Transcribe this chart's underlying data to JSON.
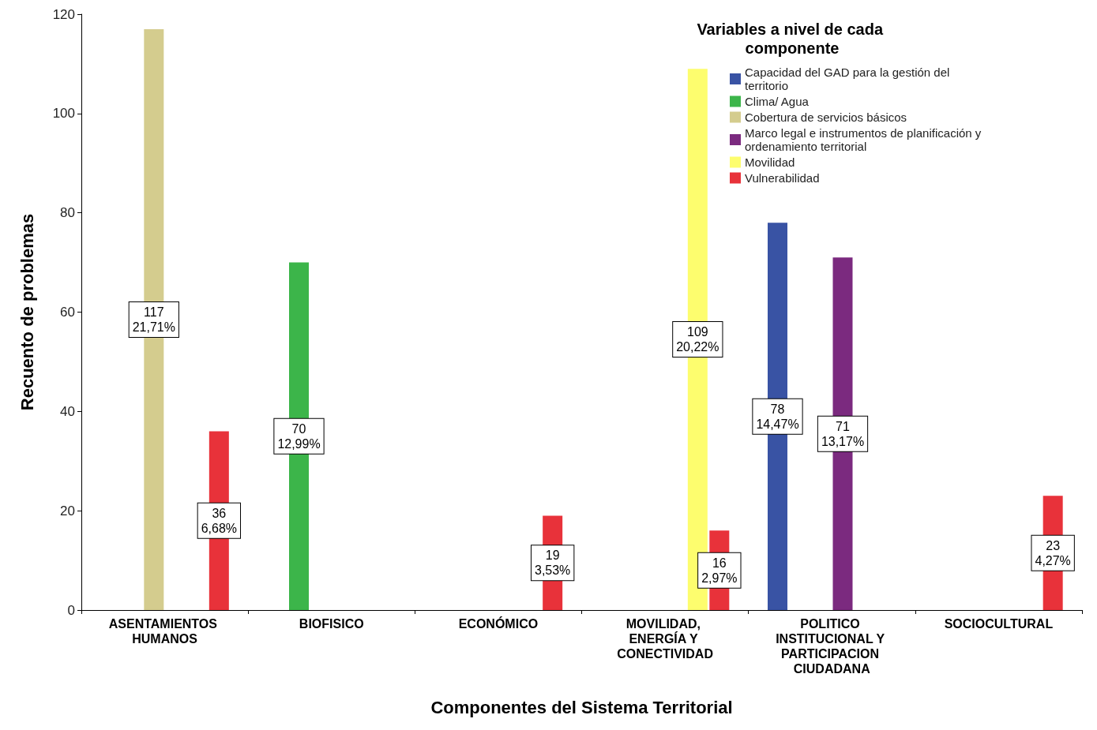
{
  "chart_data": {
    "type": "bar",
    "xlabel": "Componentes del Sistema Territorial",
    "ylabel": "Recuento de problemas",
    "legend_title": "Variables a nivel de cada componente",
    "categories": [
      "ASENTAMIENTOS HUMANOS",
      "BIOFISICO",
      "ECONÓMICO",
      "MOVILIDAD, ENERGÍA Y CONECTIVIDAD",
      "POLITICO INSTITUCIONAL Y PARTICIPACION CIUDADANA",
      "SOCIOCULTURAL"
    ],
    "series": [
      {
        "name": "Capacidad del GAD para la gestión del territorio",
        "color": "#3953a4",
        "values": [
          null,
          null,
          null,
          null,
          78,
          null
        ],
        "value_labels": [
          null,
          null,
          null,
          null,
          "78\n14,47%",
          null
        ]
      },
      {
        "name": "Clima/ Agua",
        "color": "#3cb54a",
        "values": [
          null,
          70,
          null,
          null,
          null,
          null
        ],
        "value_labels": [
          null,
          "70\n12,99%",
          null,
          null,
          null,
          null
        ]
      },
      {
        "name": "Cobertura de servicios básicos",
        "color": "#d4cc8e",
        "values": [
          117,
          null,
          null,
          null,
          null,
          null
        ],
        "value_labels": [
          "117\n21,71%",
          null,
          null,
          null,
          null,
          null
        ]
      },
      {
        "name": "Marco legal e instrumentos de planificación y ordenamiento territorial",
        "color": "#7b2a7f",
        "values": [
          null,
          null,
          null,
          null,
          71,
          null
        ],
        "value_labels": [
          null,
          null,
          null,
          null,
          "71\n13,17%",
          null
        ]
      },
      {
        "name": "Movilidad",
        "color": "#fdfd6e",
        "values": [
          null,
          null,
          null,
          109,
          null,
          null
        ],
        "value_labels": [
          null,
          null,
          null,
          "109\n20,22%",
          null,
          null
        ]
      },
      {
        "name": "Vulnerabilidad",
        "color": "#e8323a",
        "values": [
          36,
          null,
          19,
          16,
          null,
          23
        ],
        "value_labels": [
          "36\n6,68%",
          null,
          "19\n3,53%",
          "16\n2,97%",
          null,
          "23\n4,27%"
        ]
      }
    ],
    "ylim": [
      0,
      120
    ],
    "yticks": [
      0,
      20,
      40,
      60,
      80,
      100,
      120
    ],
    "grid": false,
    "legend": "top right"
  }
}
